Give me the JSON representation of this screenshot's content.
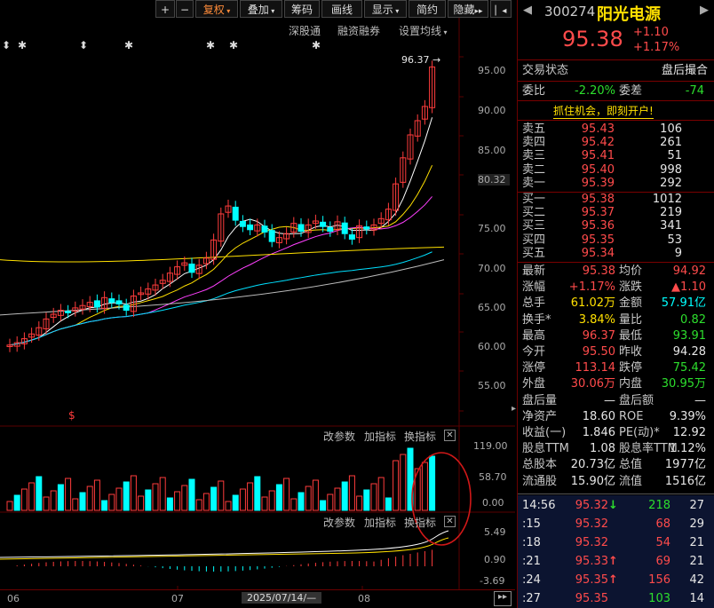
{
  "toolbar": {
    "plus": "+",
    "minus": "−",
    "fuquan": "复权",
    "diejia": "叠加",
    "chouma": "筹码",
    "huaxian": "画线",
    "xianshi": "显示",
    "jianyue": "简约",
    "yincang": "隐藏",
    "next_icon": "▸▸",
    "collapse_icon": "▏◂"
  },
  "chart_top_links": {
    "shengutong": "深股通",
    "rongzi": "融资融券",
    "settings": "设置均线"
  },
  "price_axis": [
    "95.00",
    "90.00",
    "85.00",
    "80.32",
    "75.00",
    "70.00",
    "65.00",
    "60.00",
    "55.00"
  ],
  "vol_axis": [
    "119.00",
    "58.70",
    "0.00"
  ],
  "macd_axis": [
    "5.49",
    "0.90",
    "-3.69"
  ],
  "date_axis": {
    "a": "06",
    "b": "07",
    "current": "2025/07/14/—",
    "c": "08"
  },
  "high_marker": "96.37",
  "vol_controls": {
    "gaicanshu": "改参数",
    "jiazhibiao": "加指标",
    "huanzhibiao": "换指标"
  },
  "macd_controls": {
    "gaicanshu": "改参数",
    "jiazhibiao": "加指标",
    "huanzhibiao": "换指标"
  },
  "stock": {
    "code": "300274",
    "name": "阳光电源",
    "price": "95.38",
    "change": "+1.10",
    "change_pct": "+1.17%"
  },
  "trade_status": {
    "label": "交易状态",
    "value": "盘后撮合"
  },
  "weibi": {
    "label": "委比",
    "value": "-2.20%",
    "label2": "委差",
    "value2": "-74"
  },
  "ad_banner": "抓住机会，即刻开户!",
  "sells": [
    {
      "label": "卖五",
      "price": "95.43",
      "vol": "106"
    },
    {
      "label": "卖四",
      "price": "95.42",
      "vol": "261"
    },
    {
      "label": "卖三",
      "price": "95.41",
      "vol": "51"
    },
    {
      "label": "卖二",
      "price": "95.40",
      "vol": "998"
    },
    {
      "label": "卖一",
      "price": "95.39",
      "vol": "292"
    }
  ],
  "buys": [
    {
      "label": "买一",
      "price": "95.38",
      "vol": "1012"
    },
    {
      "label": "买二",
      "price": "95.37",
      "vol": "219"
    },
    {
      "label": "买三",
      "price": "95.36",
      "vol": "341"
    },
    {
      "label": "买四",
      "price": "95.35",
      "vol": "53"
    },
    {
      "label": "买五",
      "price": "95.34",
      "vol": "9"
    }
  ],
  "stats": [
    {
      "l1": "最新",
      "v1": "95.38",
      "c1": "red",
      "l2": "均价",
      "v2": "94.92",
      "c2": "red"
    },
    {
      "l1": "涨幅",
      "v1": "+1.17%",
      "c1": "red",
      "l2": "涨跌",
      "v2": "▲1.10",
      "c2": "red"
    },
    {
      "l1": "总手",
      "v1": "61.02万",
      "c1": "yel",
      "l2": "金额",
      "v2": "57.91亿",
      "c2": "cyan"
    },
    {
      "l1": "换手*",
      "v1": "3.84%",
      "c1": "yel",
      "l2": "量比",
      "v2": "0.82",
      "c2": "grn"
    },
    {
      "l1": "最高",
      "v1": "96.37",
      "c1": "red",
      "l2": "最低",
      "v2": "93.91",
      "c2": "grn"
    },
    {
      "l1": "今开",
      "v1": "95.50",
      "c1": "red",
      "l2": "昨收",
      "v2": "94.28",
      "c2": "wht"
    },
    {
      "l1": "涨停",
      "v1": "113.14",
      "c1": "red",
      "l2": "跌停",
      "v2": "75.42",
      "c2": "grn"
    },
    {
      "l1": "外盘",
      "v1": "30.06万",
      "c1": "red",
      "l2": "内盘",
      "v2": "30.95万",
      "c2": "grn"
    },
    {
      "l1": "盘后量",
      "v1": "—",
      "c1": "wht",
      "l2": "盘后额",
      "v2": "—",
      "c2": "wht"
    },
    {
      "l1": "净资产",
      "v1": "18.60",
      "c1": "wht",
      "l2": "ROE",
      "v2": "9.39%",
      "c2": "wht"
    },
    {
      "l1": "收益(一)",
      "v1": "1.846",
      "c1": "wht",
      "l2": "PE(动)*",
      "v2": "12.92",
      "c2": "wht"
    },
    {
      "l1": "股息TTM",
      "v1": "1.08",
      "c1": "wht",
      "l2": "股息率TTM",
      "v2": "1.12%",
      "c2": "wht"
    },
    {
      "l1": "总股本",
      "v1": "20.73亿",
      "c1": "wht",
      "l2": "总值",
      "v2": "1977亿",
      "c2": "wht"
    },
    {
      "l1": "流通股",
      "v1": "15.90亿",
      "c1": "wht",
      "l2": "流值",
      "v2": "1516亿",
      "c2": "wht"
    }
  ],
  "ticks": [
    {
      "time": "14:56",
      "price": "95.32",
      "arrow": "↓",
      "vol": "218",
      "n": "27",
      "pc": "red",
      "ac": "grn",
      "vc": "grn"
    },
    {
      "time": ":15",
      "price": "95.32",
      "arrow": "",
      "vol": "68",
      "n": "29",
      "pc": "red",
      "ac": "red",
      "vc": "red"
    },
    {
      "time": ":18",
      "price": "95.32",
      "arrow": "",
      "vol": "54",
      "n": "21",
      "pc": "red",
      "ac": "red",
      "vc": "red"
    },
    {
      "time": ":21",
      "price": "95.33",
      "arrow": "↑",
      "vol": "69",
      "n": "21",
      "pc": "red",
      "ac": "red",
      "vc": "red"
    },
    {
      "time": ":24",
      "price": "95.35",
      "arrow": "↑",
      "vol": "156",
      "n": "42",
      "pc": "red",
      "ac": "red",
      "vc": "red"
    },
    {
      "time": ":27",
      "price": "95.35",
      "arrow": "",
      "vol": "103",
      "n": "14",
      "pc": "red",
      "ac": "red",
      "vc": "grn"
    }
  ],
  "colors": {
    "up": "#ff3c3c",
    "down": "#00ffff",
    "bg": "#000000",
    "grid": "#5a0000"
  }
}
